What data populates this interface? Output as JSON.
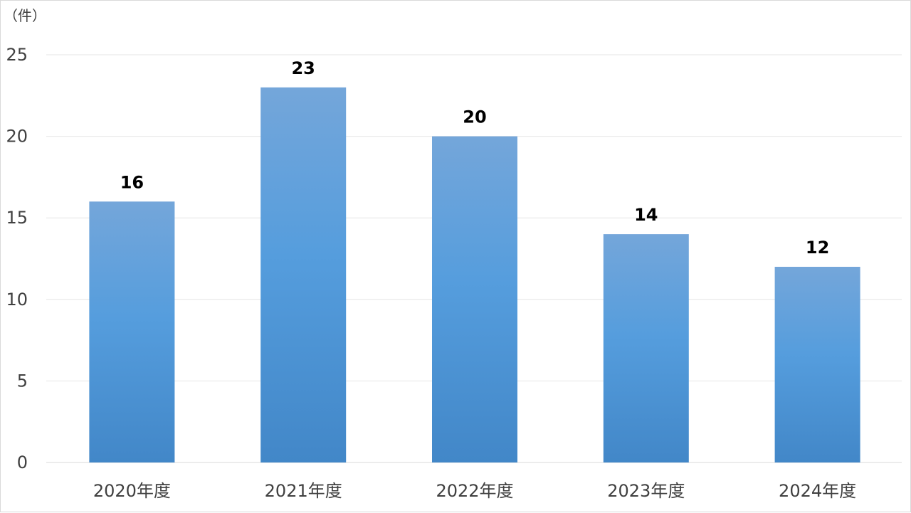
{
  "chart_data": {
    "type": "bar",
    "unit_label": "（件）",
    "categories": [
      "2020年度",
      "2021年度",
      "2022年度",
      "2023年度",
      "2024年度"
    ],
    "values": [
      16,
      23,
      20,
      14,
      12
    ],
    "ylim": [
      0,
      25
    ],
    "yticks": [
      0,
      5,
      10,
      15,
      20,
      25
    ],
    "grid": true,
    "data_labels": true,
    "legend": "none",
    "colors": {
      "bar_top": "#74a6da",
      "bar_mid": "#559ddd",
      "bar_bottom": "#4287c8",
      "grid": "#e6e6e6"
    }
  }
}
